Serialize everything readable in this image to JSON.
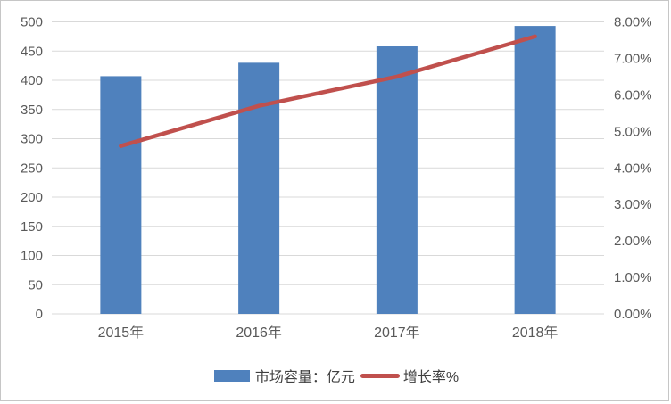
{
  "chart_data": {
    "type": "combo-bar-line",
    "title": "",
    "categories": [
      "2015年",
      "2016年",
      "2017年",
      "2018年"
    ],
    "series": [
      {
        "name": "市场容量：亿元",
        "type": "bar",
        "axis": "left",
        "values": [
          407,
          430,
          458,
          493
        ]
      },
      {
        "name": "增长率%",
        "type": "line",
        "axis": "right",
        "values": [
          4.6,
          5.7,
          6.5,
          7.6
        ]
      }
    ],
    "left_axis": {
      "min": 0,
      "max": 500,
      "step": 50,
      "tick_labels": [
        "0",
        "50",
        "100",
        "150",
        "200",
        "250",
        "300",
        "350",
        "400",
        "450",
        "500"
      ]
    },
    "right_axis": {
      "min": 0,
      "max": 8,
      "step": 1,
      "tick_labels": [
        "0.00%",
        "1.00%",
        "2.00%",
        "3.00%",
        "4.00%",
        "5.00%",
        "6.00%",
        "7.00%",
        "8.00%"
      ]
    },
    "grid": true,
    "legend_position": "bottom"
  },
  "legend": {
    "items": [
      {
        "label": "市场容量：亿元",
        "swatch": "bar",
        "color": "#4F81BD"
      },
      {
        "label": "增长率%",
        "swatch": "line",
        "color": "#C0504D"
      }
    ]
  },
  "colors": {
    "bar": "#4F81BD",
    "line": "#C0504D",
    "grid": "#D9D9D9",
    "axis_text": "#595959",
    "legend_text": "#404040",
    "border": "#C6C6C6",
    "background": "#FFFFFF"
  }
}
